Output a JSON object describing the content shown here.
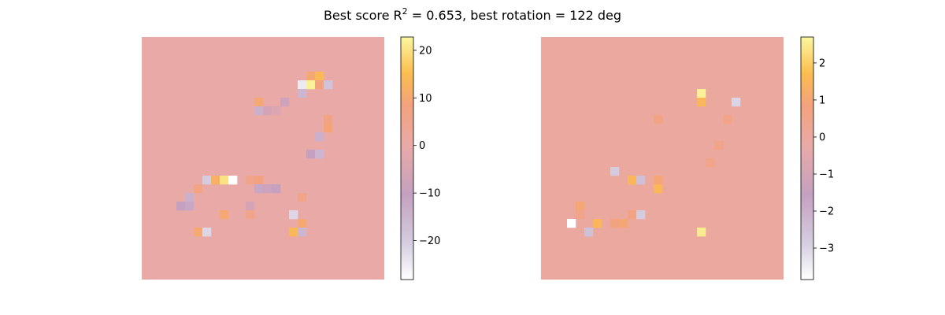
{
  "figure": {
    "title_main": "Best score R",
    "title_sup": "2",
    "title_rest": " = 0.653, best rotation = 122 deg"
  },
  "chart_data": [
    {
      "type": "heatmap",
      "grid_size": 28,
      "background_value": 0,
      "colormap": "custom",
      "colorbar": {
        "vmin": -28.2,
        "vmax": 22.8,
        "ticks": [
          -20,
          -10,
          0,
          10,
          20
        ],
        "tick_labels": [
          "−20",
          "−10",
          "0",
          "10",
          "20"
        ]
      },
      "cells": [
        {
          "row": 4,
          "col": 19,
          "value": 10
        },
        {
          "row": 4,
          "col": 20,
          "value": 14
        },
        {
          "row": 5,
          "col": 18,
          "value": -25
        },
        {
          "row": 5,
          "col": 19,
          "value": 22
        },
        {
          "row": 5,
          "col": 20,
          "value": 8
        },
        {
          "row": 5,
          "col": 21,
          "value": -18
        },
        {
          "row": 6,
          "col": 18,
          "value": -15
        },
        {
          "row": 7,
          "col": 13,
          "value": 10
        },
        {
          "row": 7,
          "col": 16,
          "value": -8
        },
        {
          "row": 8,
          "col": 13,
          "value": -14
        },
        {
          "row": 8,
          "col": 14,
          "value": -6
        },
        {
          "row": 8,
          "col": 15,
          "value": -4
        },
        {
          "row": 9,
          "col": 21,
          "value": 7
        },
        {
          "row": 10,
          "col": 21,
          "value": 9
        },
        {
          "row": 11,
          "col": 20,
          "value": -14
        },
        {
          "row": 13,
          "col": 19,
          "value": -10
        },
        {
          "row": 13,
          "col": 20,
          "value": -15
        },
        {
          "row": 16,
          "col": 7,
          "value": -20
        },
        {
          "row": 16,
          "col": 8,
          "value": 12
        },
        {
          "row": 16,
          "col": 9,
          "value": 20
        },
        {
          "row": 16,
          "col": 10,
          "value": -28
        },
        {
          "row": 16,
          "col": 12,
          "value": 6
        },
        {
          "row": 16,
          "col": 13,
          "value": 8
        },
        {
          "row": 17,
          "col": 6,
          "value": 7
        },
        {
          "row": 17,
          "col": 13,
          "value": -12
        },
        {
          "row": 17,
          "col": 14,
          "value": -8
        },
        {
          "row": 17,
          "col": 15,
          "value": -10
        },
        {
          "row": 18,
          "col": 5,
          "value": -14
        },
        {
          "row": 18,
          "col": 18,
          "value": 6
        },
        {
          "row": 19,
          "col": 4,
          "value": -10
        },
        {
          "row": 19,
          "col": 5,
          "value": -12
        },
        {
          "row": 19,
          "col": 12,
          "value": -6
        },
        {
          "row": 20,
          "col": 9,
          "value": 10
        },
        {
          "row": 20,
          "col": 12,
          "value": 6
        },
        {
          "row": 20,
          "col": 17,
          "value": -22
        },
        {
          "row": 21,
          "col": 18,
          "value": 10
        },
        {
          "row": 22,
          "col": 6,
          "value": 10
        },
        {
          "row": 22,
          "col": 7,
          "value": -22
        },
        {
          "row": 22,
          "col": 17,
          "value": 14
        },
        {
          "row": 22,
          "col": 18,
          "value": -15
        }
      ]
    },
    {
      "type": "heatmap",
      "grid_size": 28,
      "background_value": 0,
      "colormap": "custom",
      "colorbar": {
        "vmin": -3.85,
        "vmax": 2.7,
        "ticks": [
          -3,
          -2,
          -1,
          0,
          1,
          2
        ],
        "tick_labels": [
          "−3",
          "−2",
          "−1",
          "0",
          "1",
          "2"
        ]
      },
      "cells": [
        {
          "row": 6,
          "col": 18,
          "value": 2.6
        },
        {
          "row": 7,
          "col": 18,
          "value": 1.5
        },
        {
          "row": 7,
          "col": 22,
          "value": -3.0
        },
        {
          "row": 9,
          "col": 13,
          "value": 0.7
        },
        {
          "row": 9,
          "col": 21,
          "value": 0.6
        },
        {
          "row": 12,
          "col": 20,
          "value": 0.5
        },
        {
          "row": 14,
          "col": 19,
          "value": 0.6
        },
        {
          "row": 15,
          "col": 8,
          "value": -2.8
        },
        {
          "row": 16,
          "col": 10,
          "value": 1.5
        },
        {
          "row": 16,
          "col": 11,
          "value": -2.5
        },
        {
          "row": 16,
          "col": 13,
          "value": 1.0
        },
        {
          "row": 17,
          "col": 13,
          "value": 1.5
        },
        {
          "row": 19,
          "col": 4,
          "value": 1.0
        },
        {
          "row": 20,
          "col": 4,
          "value": 0.5
        },
        {
          "row": 20,
          "col": 10,
          "value": 0.7
        },
        {
          "row": 20,
          "col": 11,
          "value": -2.8
        },
        {
          "row": 21,
          "col": 3,
          "value": -3.85
        },
        {
          "row": 21,
          "col": 6,
          "value": 1.5
        },
        {
          "row": 21,
          "col": 8,
          "value": 0.8
        },
        {
          "row": 21,
          "col": 9,
          "value": 1.0
        },
        {
          "row": 22,
          "col": 5,
          "value": -2.5
        },
        {
          "row": 22,
          "col": 18,
          "value": 2.5
        }
      ]
    }
  ]
}
